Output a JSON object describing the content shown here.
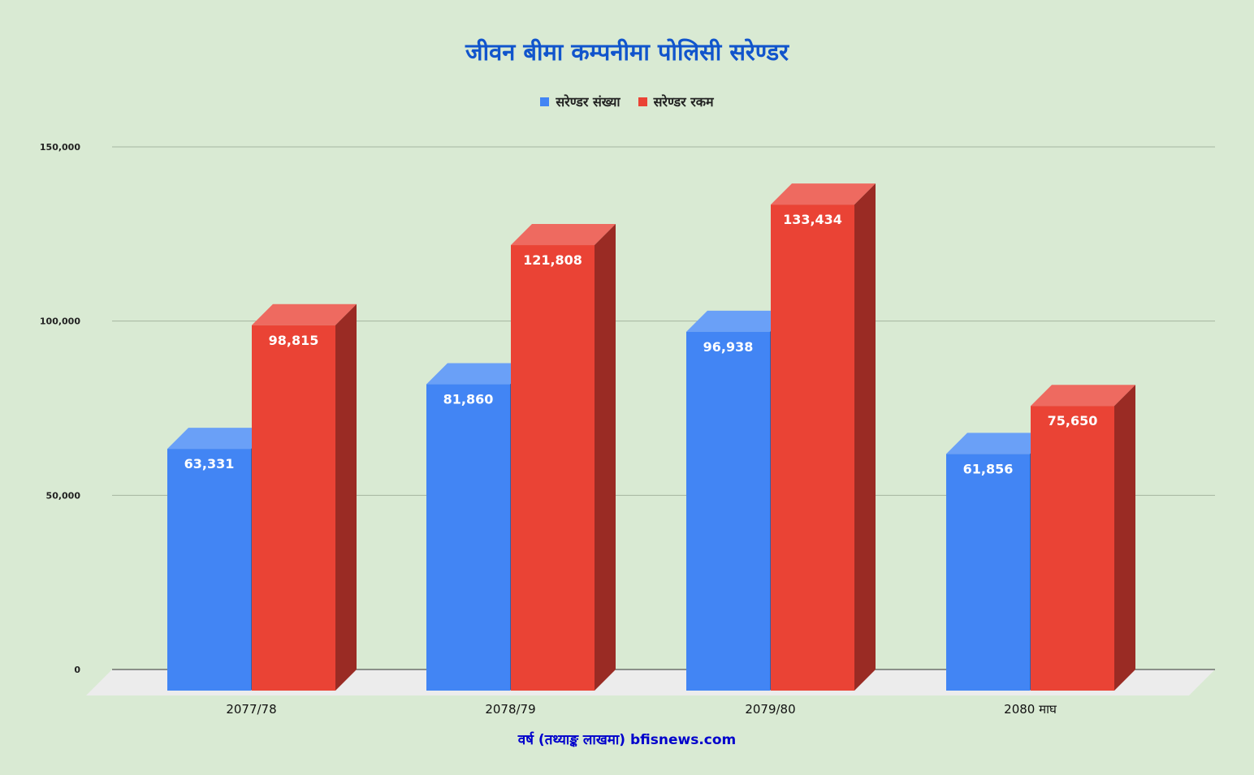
{
  "chart_data": {
    "type": "bar",
    "title": "जीवन बीमा कम्पनीमा पोलिसी सरेण्डर",
    "xlabel": "वर्ष (तथ्याङ्क लाखमा) bfisnews.com",
    "ylabel": "",
    "categories": [
      "2077/78",
      "2078/79",
      "2079/80",
      "2080 माघ"
    ],
    "series": [
      {
        "name": "सरेण्डर संख्या",
        "values": [
          63331,
          81860,
          96938,
          61856
        ]
      },
      {
        "name": "सरेण्डर रकम",
        "values": [
          98815,
          121808,
          133434,
          75650
        ]
      }
    ],
    "data_labels": [
      [
        "63,331",
        "81,860",
        "96,938",
        "61,856"
      ],
      [
        "98,815",
        "121,808",
        "133,434",
        "75,650"
      ]
    ],
    "ylim": [
      0,
      150000
    ],
    "yticks": [
      0,
      50000,
      100000,
      150000
    ],
    "ytick_labels": [
      "0",
      "50,000",
      "100,000",
      "150,000"
    ],
    "grid": true,
    "legend": "top",
    "style": "3d",
    "colors": {
      "series": [
        "#4285f4",
        "#ea4335"
      ],
      "series_top": [
        "#6aa0f7",
        "#ee6a60"
      ],
      "series_side": [
        "#2f5fad",
        "#9a2b24"
      ],
      "title": "#1155cc",
      "xlabel": "#0000cc",
      "background": "#d9ead3",
      "grid": "#a5b5a0"
    }
  }
}
